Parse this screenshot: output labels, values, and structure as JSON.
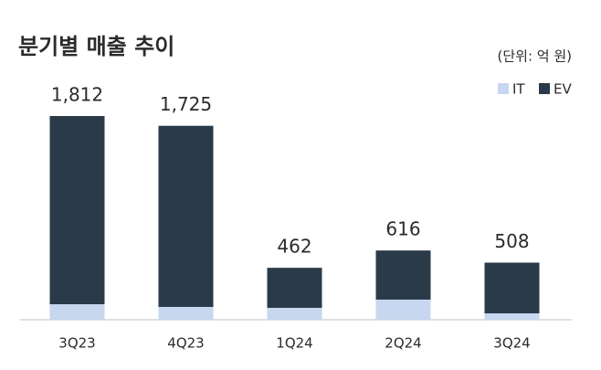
{
  "chart_data": {
    "type": "stacked-bar",
    "title": "분기별 매출 추이",
    "unit": "(단위: 억 원)",
    "categories": [
      "3Q23",
      "4Q23",
      "1Q24",
      "2Q24",
      "3Q24"
    ],
    "series": [
      {
        "name": "IT",
        "color": "#c6d7ef",
        "values": [
          138,
          114,
          106,
          179,
          57
        ]
      },
      {
        "name": "EV",
        "color": "#2b3a48",
        "values": [
          1674,
          1611,
          356,
          437,
          451
        ]
      }
    ],
    "totals": {
      "values": [
        1812,
        1725,
        462,
        616,
        508
      ],
      "value_labels": [
        "1,812",
        "1,725",
        "462",
        "616",
        "508"
      ]
    }
  }
}
